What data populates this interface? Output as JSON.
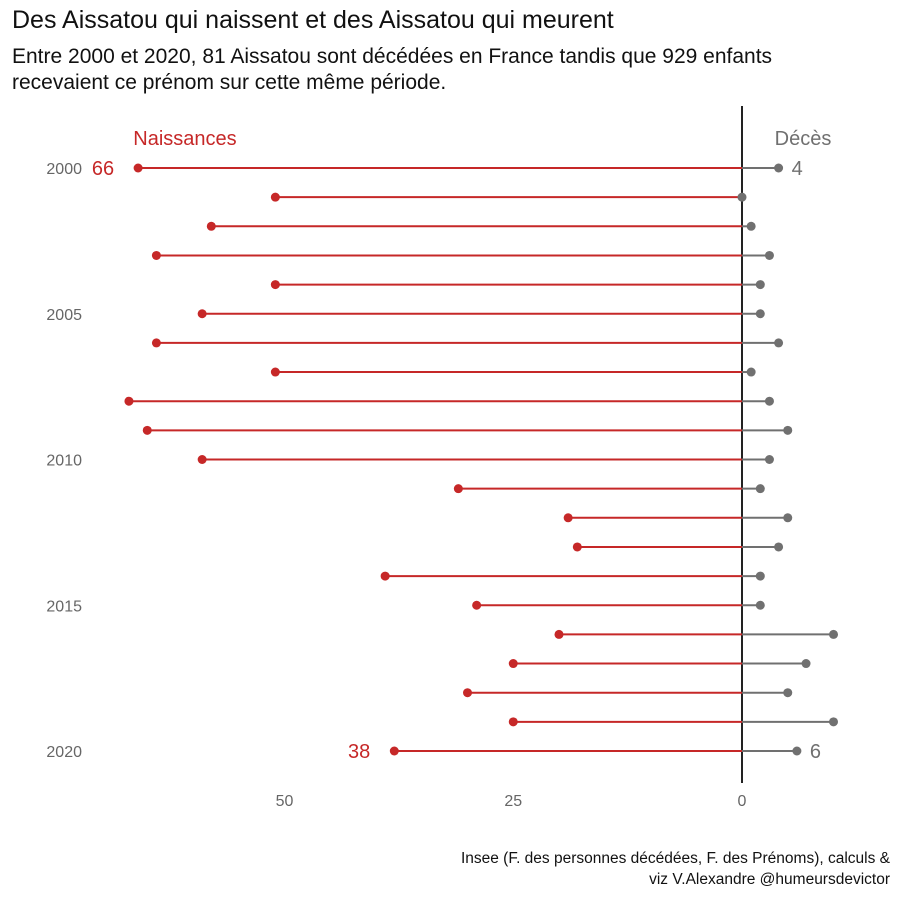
{
  "title": "Des Aissatou qui naissent et des Aissatou qui meurent",
  "subtitle": "Entre 2000 et 2020, 81 Aissatou sont décédées en France tandis que 929 enfants recevaient ce prénom sur cette même période.",
  "caption_line1": "Insee (F. des personnes décédées, F. des Prénoms), calculs &",
  "caption_line2": "viz V.Alexandre @humeursdevictor",
  "colors": {
    "births": "#c62828",
    "deaths": "#707070",
    "axis": "#222222",
    "ticks": "#666666"
  },
  "chart_data": {
    "type": "lollipop",
    "legend_births": "Naissances",
    "legend_deaths": "Décès",
    "years": [
      2000,
      2001,
      2002,
      2003,
      2004,
      2005,
      2006,
      2007,
      2008,
      2009,
      2010,
      2011,
      2012,
      2013,
      2014,
      2015,
      2016,
      2017,
      2018,
      2019,
      2020
    ],
    "year_tick_labels": [
      "2000",
      "2005",
      "2010",
      "2015",
      "2020"
    ],
    "x_tick_labels": [
      "50",
      "25",
      "0"
    ],
    "x_ticks": [
      50,
      25,
      0
    ],
    "births": [
      66,
      51,
      58,
      64,
      51,
      59,
      64,
      51,
      67,
      65,
      59,
      31,
      19,
      18,
      39,
      29,
      20,
      25,
      30,
      25,
      38
    ],
    "deaths": [
      4,
      0,
      1,
      3,
      2,
      2,
      4,
      1,
      3,
      5,
      3,
      2,
      5,
      4,
      2,
      2,
      10,
      7,
      5,
      10,
      6
    ],
    "births_value_labels": [
      {
        "year": 2000,
        "text": "66"
      },
      {
        "year": 2020,
        "text": "38"
      }
    ],
    "deaths_value_labels": [
      {
        "year": 2000,
        "text": "4"
      },
      {
        "year": 2020,
        "text": "6"
      }
    ]
  }
}
